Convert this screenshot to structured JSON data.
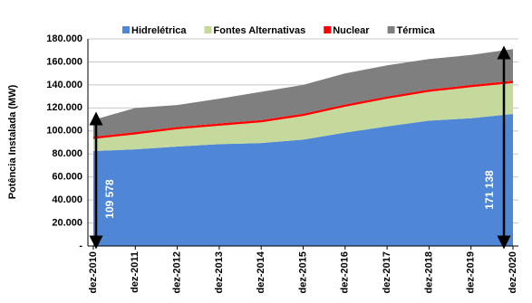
{
  "chart_data": {
    "type": "area",
    "stacked": true,
    "y_label": "Potência Instalada (MW)",
    "categories": [
      "dez-2010",
      "dez-2011",
      "dez-2012",
      "dez-2013",
      "dez-2014",
      "dez-2015",
      "dez-2016",
      "dez-2017",
      "dez-2018",
      "dez-2019",
      "dez-2020"
    ],
    "series": [
      {
        "name": "Hidrelétrica",
        "color": "#4f86d6",
        "values": [
          82500,
          84000,
          86500,
          88500,
          89500,
          92500,
          98500,
          104000,
          109000,
          111000,
          114800
        ]
      },
      {
        "name": "Fontes Alternativas",
        "color": "#c4d99b",
        "values": [
          10500,
          13000,
          15000,
          16000,
          18000,
          20500,
          22500,
          24000,
          25000,
          27000,
          26800
        ]
      },
      {
        "name": "Nuclear",
        "color": "#ff0000",
        "values": [
          2000,
          2000,
          2000,
          2000,
          2000,
          2000,
          2000,
          2000,
          2000,
          2000,
          2000
        ]
      },
      {
        "name": "Térmica",
        "color": "#7f7f7f",
        "values": [
          14578,
          21000,
          19000,
          21500,
          24500,
          25000,
          27000,
          27000,
          26500,
          26000,
          27538
        ]
      }
    ],
    "ylim": [
      0,
      180000
    ],
    "yticks": [
      {
        "value": 0,
        "label": "-"
      },
      {
        "value": 20000,
        "label": "20.000"
      },
      {
        "value": 40000,
        "label": "40.000"
      },
      {
        "value": 60000,
        "label": "60.000"
      },
      {
        "value": 80000,
        "label": "80.000"
      },
      {
        "value": 100000,
        "label": "100.000"
      },
      {
        "value": 120000,
        "label": "120.000"
      },
      {
        "value": 140000,
        "label": "140.000"
      },
      {
        "value": 160000,
        "label": "160.000"
      },
      {
        "value": 180000,
        "label": "180.000"
      }
    ],
    "grid": true,
    "annotations": [
      "109 578",
      "171 138"
    ]
  }
}
